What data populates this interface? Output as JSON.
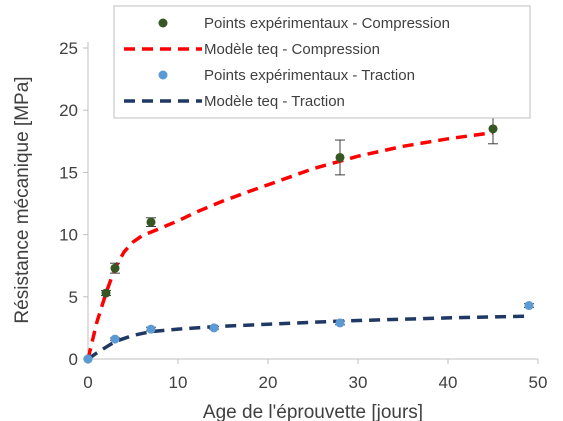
{
  "chart_data": {
    "type": "scatter",
    "xlabel": "Age de l'éprouvette [jours]",
    "ylabel": "Résistance mécanique [MPa]",
    "xlim": [
      0,
      50
    ],
    "ylim": [
      0,
      25
    ],
    "xticks": [
      0,
      10,
      20,
      30,
      40,
      50
    ],
    "yticks": [
      0,
      5,
      10,
      15,
      20,
      25
    ],
    "grid": false,
    "legend_position": "top-right",
    "series": [
      {
        "name": "Points expérimentaux - Compression",
        "kind": "points",
        "color": "#375623",
        "x": [
          0,
          2,
          3,
          7,
          28,
          45
        ],
        "y": [
          0,
          5.3,
          7.3,
          11.0,
          16.2,
          18.5
        ],
        "err": [
          0,
          0.2,
          0.4,
          0.35,
          1.4,
          1.2
        ]
      },
      {
        "name": "Modèle teq - Compression",
        "kind": "line",
        "color": "#ff0000",
        "x": [
          0,
          1,
          2,
          3,
          4,
          5,
          6,
          7,
          8,
          10,
          12,
          15,
          18,
          20,
          25,
          30,
          35,
          40,
          45
        ],
        "y": [
          0,
          3.0,
          5.3,
          7.3,
          8.6,
          9.4,
          9.9,
          10.2,
          10.5,
          11.1,
          11.8,
          12.7,
          13.5,
          14.0,
          15.3,
          16.3,
          17.1,
          17.7,
          18.2
        ]
      },
      {
        "name": "Points expérimentaux - Traction",
        "kind": "points",
        "color": "#5b9bd5",
        "x": [
          0,
          3,
          7,
          14,
          28,
          49
        ],
        "y": [
          0,
          1.6,
          2.4,
          2.5,
          2.9,
          4.3
        ],
        "err": [
          0,
          0.1,
          0.15,
          0.1,
          0.15,
          0.15
        ]
      },
      {
        "name": "Modèle teq  - Traction",
        "kind": "line",
        "color": "#1f3864",
        "x": [
          0,
          1,
          2,
          3,
          5,
          7,
          10,
          14,
          20,
          28,
          35,
          40,
          49
        ],
        "y": [
          0,
          0.5,
          0.95,
          1.4,
          1.9,
          2.2,
          2.4,
          2.6,
          2.8,
          3.05,
          3.2,
          3.3,
          3.45
        ]
      }
    ]
  }
}
